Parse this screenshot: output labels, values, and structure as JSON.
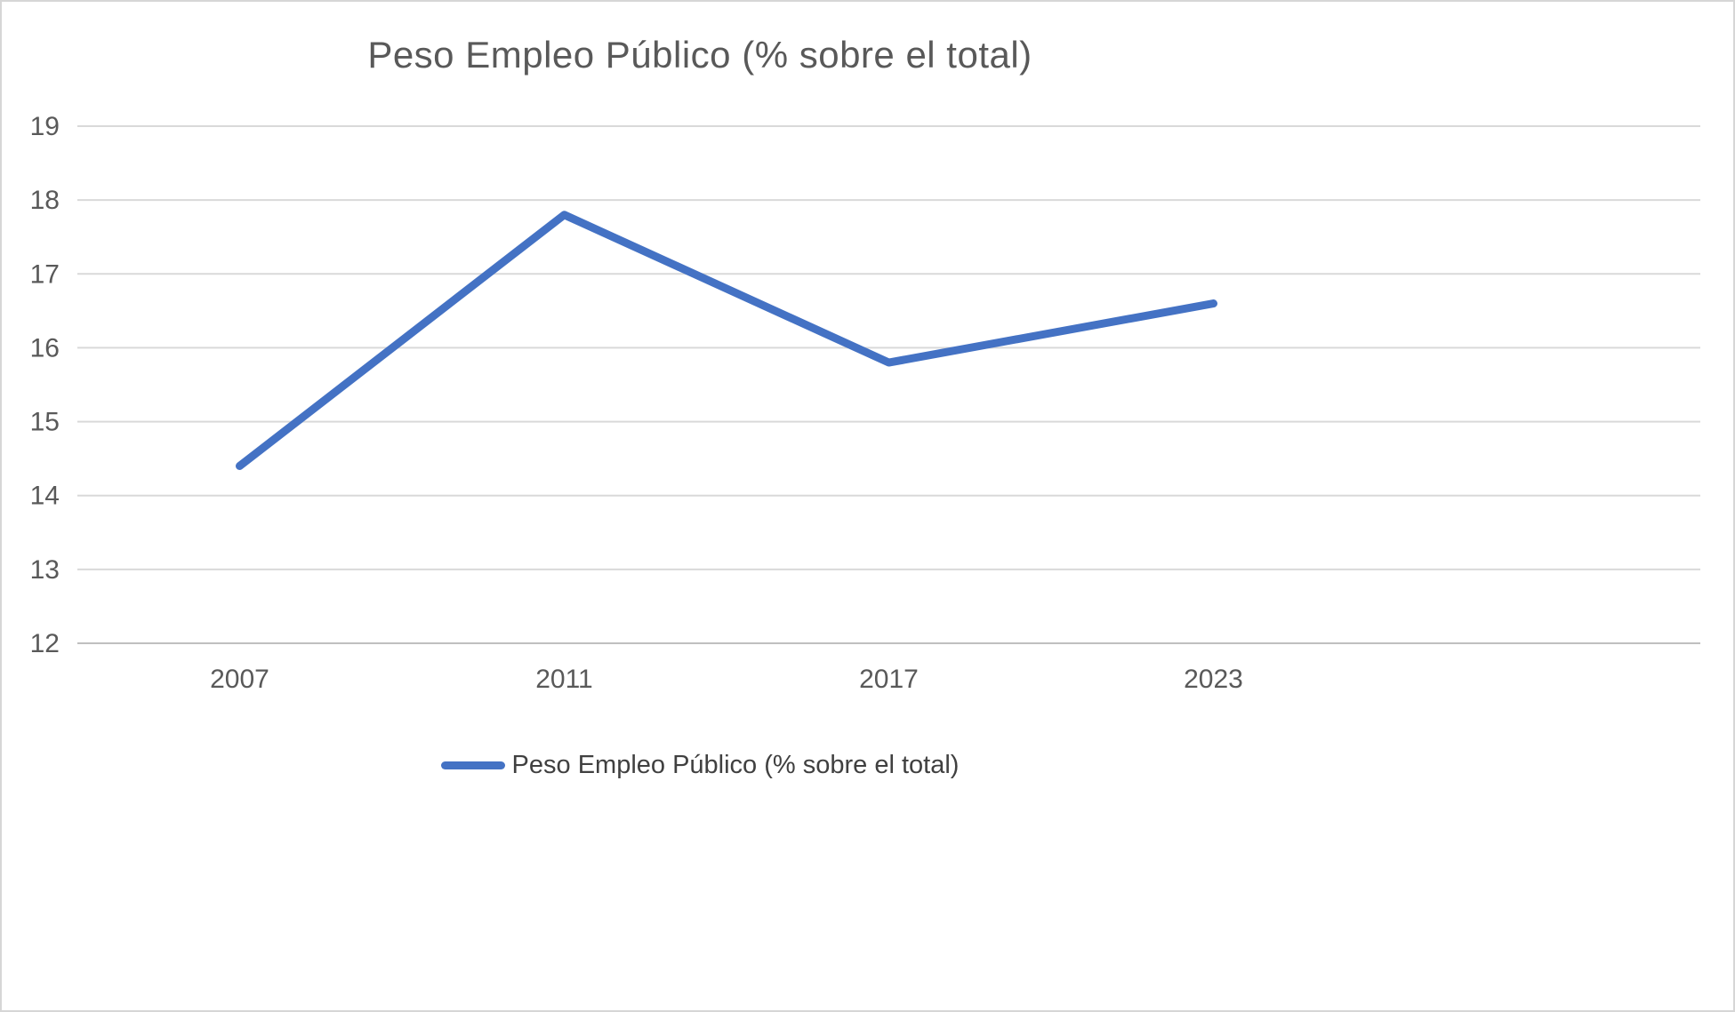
{
  "chart": {
    "title": "Peso Empleo Público (% sobre el total)",
    "legend_label": "Peso Empleo Público (% sobre el total)"
  },
  "chart_data": {
    "type": "line",
    "title": "Peso Empleo Público (% sobre el total)",
    "categories": [
      "2007",
      "2011",
      "2017",
      "2023"
    ],
    "series": [
      {
        "name": "Peso Empleo Público (% sobre el total)",
        "values": [
          14.4,
          17.8,
          15.8,
          16.6
        ]
      }
    ],
    "xlabel": "",
    "ylabel": "",
    "ylim": [
      12,
      19
    ],
    "ytick_step": 1,
    "yticks": [
      12,
      13,
      14,
      15,
      16,
      17,
      18,
      19
    ],
    "grid": true,
    "legend_position": "bottom",
    "line_color": "#4472C4",
    "gridline_color": "#D9D9D9",
    "axis_color": "#BFBFBF",
    "text_color": "#595959"
  }
}
